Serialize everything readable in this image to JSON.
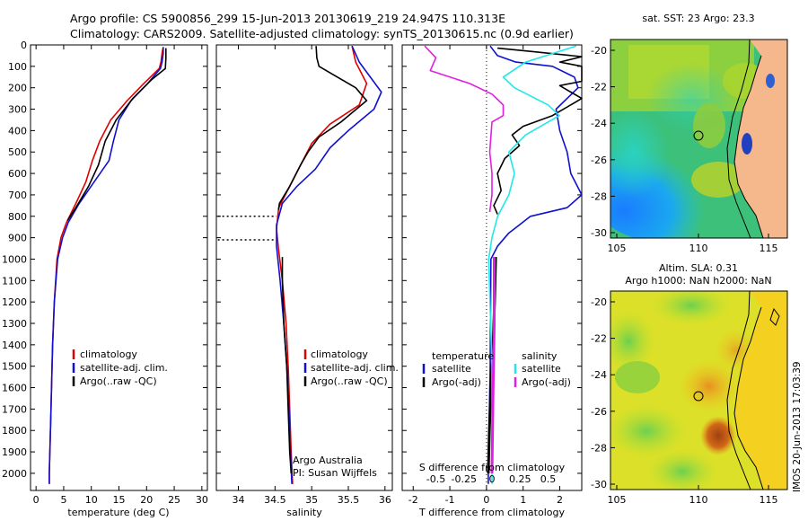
{
  "header": {
    "line1": "Argo profile: CS 5900856_299 15-Jun-2013 20130619_219 24.947S 110.313E",
    "line2": "Climatology: CARS2009. Satellite-adjusted climatology: synTS_20130615.nc (0.9d earlier)"
  },
  "side_text": "IMOS 20-Jun-2013 17:03:39",
  "colors": {
    "climatology": "#e00000",
    "satellite": "#1010d0",
    "argo": "#000000",
    "s_satellite": "#20e8e8",
    "s_argo": "#e020e0"
  },
  "chart_data": [
    {
      "type": "line",
      "id": "temperature",
      "xlabel": "temperature (deg C)",
      "ylabel": "",
      "xlim": [
        -1,
        31
      ],
      "ylim": [
        2080,
        0
      ],
      "xticks": [
        0,
        5,
        10,
        15,
        20,
        25,
        30
      ],
      "yticks": [
        0,
        100,
        200,
        300,
        400,
        500,
        600,
        700,
        800,
        900,
        1000,
        1100,
        1200,
        1300,
        1400,
        1500,
        1600,
        1700,
        1800,
        1900,
        2000
      ],
      "legend": [
        "climatology",
        "satellite-adj. clim.",
        "Argo(..raw -QC)"
      ],
      "series": [
        {
          "name": "climatology",
          "color": "#e00000",
          "points": [
            [
              23.0,
              10
            ],
            [
              22.8,
              40
            ],
            [
              22.6,
              80
            ],
            [
              22.3,
              110
            ],
            [
              19.5,
              180
            ],
            [
              16.5,
              260
            ],
            [
              13.5,
              350
            ],
            [
              11.5,
              450
            ],
            [
              10.2,
              540
            ],
            [
              9.0,
              640
            ],
            [
              7.2,
              740
            ],
            [
              5.5,
              830
            ],
            [
              4.5,
              900
            ],
            [
              3.8,
              1000
            ],
            [
              3.3,
              1200
            ],
            [
              3.0,
              1400
            ],
            [
              2.8,
              1600
            ],
            [
              2.6,
              1800
            ],
            [
              2.4,
              2000
            ],
            [
              2.4,
              2050
            ]
          ]
        },
        {
          "name": "satellite-adj. clim.",
          "color": "#1010d0",
          "points": [
            [
              23.0,
              10
            ],
            [
              23.0,
              40
            ],
            [
              22.8,
              80
            ],
            [
              22.5,
              110
            ],
            [
              20.2,
              180
            ],
            [
              17.2,
              260
            ],
            [
              15.0,
              350
            ],
            [
              14.0,
              450
            ],
            [
              13.2,
              540
            ],
            [
              10.5,
              640
            ],
            [
              7.8,
              740
            ],
            [
              5.8,
              830
            ],
            [
              4.8,
              900
            ],
            [
              3.9,
              1000
            ],
            [
              3.3,
              1200
            ],
            [
              3.0,
              1400
            ],
            [
              2.8,
              1600
            ],
            [
              2.6,
              1800
            ],
            [
              2.4,
              2000
            ],
            [
              2.4,
              2050
            ]
          ]
        },
        {
          "name": "Argo(..raw -QC)",
          "color": "#000000",
          "points": [
            [
              23.5,
              15
            ],
            [
              23.5,
              60
            ],
            [
              23.4,
              110
            ],
            [
              21.0,
              160
            ],
            [
              17.5,
              250
            ],
            [
              14.5,
              350
            ],
            [
              12.5,
              450
            ],
            [
              11.3,
              560
            ],
            [
              9.5,
              660
            ],
            [
              7.2,
              760
            ],
            [
              5.7,
              820
            ]
          ]
        }
      ]
    },
    {
      "type": "line",
      "id": "salinity",
      "xlabel": "salinity",
      "xlim": [
        33.7,
        36.1
      ],
      "ylim": [
        2080,
        0
      ],
      "xticks": [
        34,
        34.5,
        35,
        35.5,
        36
      ],
      "legend": [
        "climatology",
        "satellite-adj. clim.",
        "Argo(..raw -QC)"
      ],
      "annotations": [
        "Argo Australia",
        "PI: Susan Wijffels"
      ],
      "series": [
        {
          "name": "climatology",
          "color": "#e00000",
          "points": [
            [
              35.55,
              5
            ],
            [
              35.6,
              80
            ],
            [
              35.75,
              180
            ],
            [
              35.65,
              280
            ],
            [
              35.25,
              370
            ],
            [
              35.0,
              460
            ],
            [
              34.85,
              560
            ],
            [
              34.7,
              660
            ],
            [
              34.55,
              760
            ],
            [
              34.52,
              860
            ],
            [
              34.55,
              960
            ],
            [
              34.6,
              1100
            ],
            [
              34.65,
              1300
            ],
            [
              34.68,
              1500
            ],
            [
              34.7,
              1700
            ],
            [
              34.72,
              1900
            ],
            [
              34.74,
              2050
            ]
          ]
        },
        {
          "name": "satellite-adj. clim.",
          "color": "#1010d0",
          "points": [
            [
              35.55,
              5
            ],
            [
              35.65,
              80
            ],
            [
              35.95,
              220
            ],
            [
              35.85,
              300
            ],
            [
              35.5,
              400
            ],
            [
              35.25,
              480
            ],
            [
              35.05,
              580
            ],
            [
              34.8,
              660
            ],
            [
              34.6,
              740
            ],
            [
              34.52,
              840
            ],
            [
              34.52,
              940
            ],
            [
              34.57,
              1100
            ],
            [
              34.62,
              1300
            ],
            [
              34.66,
              1500
            ],
            [
              34.69,
              1700
            ],
            [
              34.71,
              1900
            ],
            [
              34.73,
              2050
            ]
          ]
        },
        {
          "name": "Argo(..raw -QC)",
          "color": "#000000",
          "points": [
            [
              35.06,
              5
            ],
            [
              35.07,
              60
            ],
            [
              35.1,
              100
            ],
            [
              35.3,
              140
            ],
            [
              35.6,
              200
            ],
            [
              35.75,
              260
            ],
            [
              35.4,
              360
            ],
            [
              35.1,
              430
            ],
            [
              34.95,
              500
            ],
            [
              34.85,
              560
            ],
            [
              34.7,
              660
            ],
            [
              34.56,
              740
            ],
            [
              34.55,
              770
            ]
          ]
        },
        {
          "name": "Argo deep",
          "color": "#000000",
          "points": [
            [
              34.6,
              990
            ],
            [
              34.6,
              1100
            ],
            [
              34.62,
              1300
            ],
            [
              34.66,
              1500
            ],
            [
              34.68,
              1700
            ],
            [
              34.7,
              1900
            ],
            [
              34.72,
              2000
            ]
          ]
        }
      ],
      "dotted_lines": [
        {
          "from": 33.72,
          "to": 34.52,
          "y": 800
        },
        {
          "from": 33.72,
          "to": 34.5,
          "y": 910
        }
      ]
    },
    {
      "type": "line",
      "id": "difference",
      "xlabel": "T difference from climatology",
      "xlabel2": "S difference from climatology",
      "xlim": [
        -2.3,
        2.6
      ],
      "x2lim": [
        -0.8,
        0.8
      ],
      "ylim": [
        2080,
        0
      ],
      "xticks": [
        -2,
        -1,
        0,
        1,
        2
      ],
      "x2ticks": [
        "-0.5",
        "-0.25",
        "0",
        "0.25",
        "0.5"
      ],
      "legend_groups": [
        {
          "title": "temperature",
          "items": [
            "satellite",
            "Argo(-adj)"
          ]
        },
        {
          "title": "salinity",
          "items": [
            "satellite",
            "Argo(-adj)"
          ]
        }
      ],
      "series": [
        {
          "name": "T satellite",
          "color": "#1010d0",
          "points": [
            [
              0.1,
              5
            ],
            [
              0.3,
              50
            ],
            [
              0.8,
              80
            ],
            [
              1.8,
              100
            ],
            [
              2.4,
              150
            ],
            [
              2.5,
              200
            ],
            [
              2.2,
              250
            ],
            [
              1.9,
              300
            ],
            [
              2.0,
              400
            ],
            [
              2.2,
              500
            ],
            [
              2.3,
              600
            ],
            [
              2.6,
              700
            ],
            [
              2.2,
              760
            ],
            [
              1.2,
              800
            ],
            [
              0.6,
              880
            ],
            [
              0.3,
              940
            ],
            [
              0.12,
              1000
            ],
            [
              0.1,
              1500
            ],
            [
              0.05,
              2000
            ],
            [
              0.05,
              2050
            ]
          ]
        },
        {
          "name": "T Argo(-adj)",
          "color": "#000000",
          "points": [
            [
              0.3,
              15
            ],
            [
              1.2,
              30
            ],
            [
              2.6,
              55
            ],
            [
              2.0,
              80
            ],
            [
              2.6,
              100
            ],
            [
              2.6,
              170
            ],
            [
              2.0,
              190
            ],
            [
              2.3,
              220
            ],
            [
              2.6,
              250
            ],
            [
              2.4,
              270
            ],
            [
              1.8,
              330
            ],
            [
              1.0,
              380
            ],
            [
              0.7,
              420
            ],
            [
              0.9,
              470
            ],
            [
              0.5,
              530
            ],
            [
              0.3,
              600
            ],
            [
              0.4,
              680
            ],
            [
              0.2,
              750
            ],
            [
              0.3,
              790
            ]
          ]
        },
        {
          "name": "T Argo deep",
          "color": "#000000",
          "points": [
            [
              0.25,
              990
            ],
            [
              0.22,
              1200
            ],
            [
              0.18,
              1400
            ],
            [
              0.12,
              1600
            ],
            [
              0.08,
              1800
            ],
            [
              0.05,
              2000
            ]
          ]
        },
        {
          "name": "S satellite",
          "color": "#20e8e8",
          "points": [
            [
              0.75,
              5
            ],
            [
              0.3,
              80
            ],
            [
              0.1,
              150
            ],
            [
              0.2,
              200
            ],
            [
              0.5,
              280
            ],
            [
              0.6,
              330
            ],
            [
              0.3,
              420
            ],
            [
              0.15,
              500
            ],
            [
              0.2,
              600
            ],
            [
              0.15,
              700
            ],
            [
              0.05,
              800
            ],
            [
              0.0,
              900
            ],
            [
              -0.03,
              1000
            ],
            [
              0.0,
              1500
            ],
            [
              0.0,
              2050
            ]
          ]
        },
        {
          "name": "S Argo(-adj)",
          "color": "#e020e0",
          "points": [
            [
              -0.6,
              5
            ],
            [
              -0.5,
              60
            ],
            [
              -0.55,
              120
            ],
            [
              -0.2,
              180
            ],
            [
              0.0,
              230
            ],
            [
              0.1,
              280
            ],
            [
              0.1,
              330
            ],
            [
              0.0,
              360
            ],
            [
              -0.02,
              500
            ],
            [
              0.0,
              600
            ],
            [
              0.0,
              700
            ],
            [
              -0.02,
              780
            ]
          ]
        },
        {
          "name": "S Argo deep",
          "color": "#e020e0",
          "points": [
            [
              0.02,
              990
            ],
            [
              0.02,
              1300
            ],
            [
              0.01,
              1600
            ],
            [
              0.0,
              2000
            ]
          ]
        }
      ]
    }
  ],
  "maps": [
    {
      "title": "sat. SST: 23 Argo: 23.3",
      "title2": "",
      "xticks": [
        "105",
        "110",
        "115"
      ],
      "yticks": [
        "-20",
        "-22",
        "-24",
        "-26",
        "-28",
        "-30"
      ]
    },
    {
      "title": "Altim. SLA: 0.31",
      "title2": "Argo h1000: NaN h2000: NaN",
      "xticks": [
        "105",
        "110",
        "115"
      ],
      "yticks": [
        "-20",
        "-22",
        "-24",
        "-26",
        "-28",
        "-30"
      ]
    }
  ]
}
